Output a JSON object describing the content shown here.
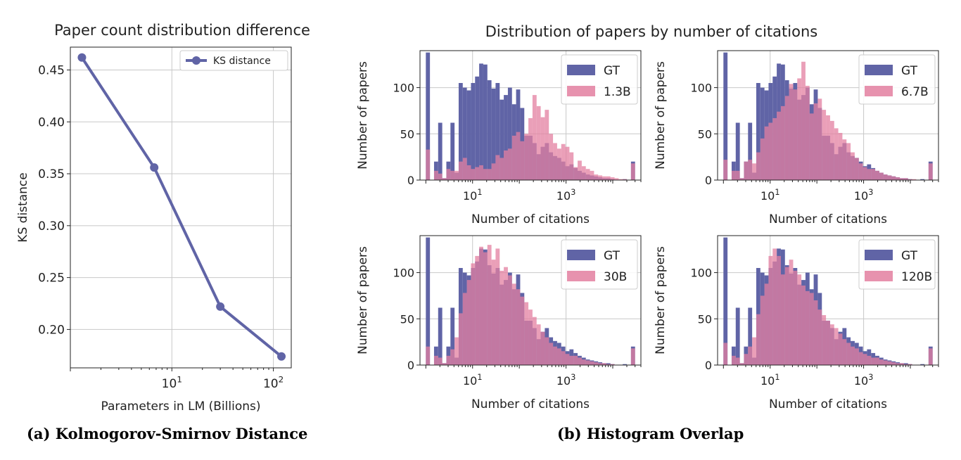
{
  "captions": {
    "a": "(a) Kolmogorov-Smirnov Distance",
    "b": "(b) Histogram Overlap"
  },
  "colors": {
    "gt": "#6064a6",
    "model": "#e37fa0",
    "line": "#6064a6"
  },
  "chart_data": [
    {
      "type": "line",
      "title": "Paper count distribution difference",
      "xlabel": "Parameters in LM (Billions)",
      "ylabel": "KS distance",
      "xscale": "log",
      "xlim": [
        1.0,
        150
      ],
      "ylim": [
        0.163,
        0.472
      ],
      "xticks": [
        {
          "value": 10,
          "base": "10",
          "exp": "1"
        },
        {
          "value": 100,
          "base": "10",
          "exp": "2"
        }
      ],
      "yticks": [
        "0.20",
        "0.25",
        "0.30",
        "0.35",
        "0.40",
        "0.45"
      ],
      "grid": true,
      "legend_position": "upper right",
      "series": [
        {
          "name": "KS distance",
          "x": [
            1.3,
            6.7,
            30,
            120
          ],
          "y": [
            0.462,
            0.356,
            0.222,
            0.174
          ]
        }
      ]
    },
    {
      "type": "histogram",
      "title": "Distribution of papers by number of citations",
      "xlabel": "Number of citations",
      "ylabel": "Number of papers",
      "xscale": "log",
      "ylim": [
        0,
        140
      ],
      "yticks": [
        "0",
        "50",
        "100"
      ],
      "xticks": [
        {
          "value": 10,
          "base": "10",
          "exp": "1"
        },
        {
          "value": 1000,
          "base": "10",
          "exp": "3"
        }
      ],
      "grid": true,
      "legend_position": "upper right",
      "panels": [
        {
          "series": [
            {
              "name": "GT",
              "values": [
                138,
                0,
                20,
                62,
                2,
                20,
                62,
                8,
                105,
                100,
                97,
                105,
                112,
                126,
                125,
                108,
                99,
                105,
                87,
                92,
                100,
                82,
                98,
                78,
                48,
                48,
                40,
                28,
                36,
                40,
                30,
                26,
                24,
                20,
                15,
                17,
                13,
                10,
                8,
                6,
                5,
                4,
                3,
                2,
                2,
                1,
                0,
                0,
                1,
                0,
                20
              ]
            },
            {
              "name": "1.3B",
              "values": [
                33,
                0,
                10,
                7,
                2,
                12,
                10,
                10,
                20,
                24,
                16,
                12,
                14,
                16,
                12,
                12,
                18,
                27,
                24,
                32,
                34,
                48,
                52,
                42,
                50,
                67,
                92,
                80,
                68,
                76,
                50,
                40,
                34,
                39,
                36,
                30,
                14,
                21,
                15,
                12,
                10,
                6,
                5,
                4,
                4,
                3,
                2,
                1,
                1,
                0,
                18
              ]
            }
          ]
        },
        {
          "series": [
            {
              "name": "GT",
              "values": [
                138,
                0,
                20,
                62,
                2,
                20,
                62,
                8,
                105,
                100,
                97,
                105,
                112,
                126,
                125,
                108,
                99,
                105,
                87,
                92,
                100,
                82,
                98,
                78,
                48,
                48,
                40,
                28,
                36,
                40,
                30,
                26,
                24,
                20,
                15,
                17,
                13,
                10,
                8,
                6,
                5,
                4,
                3,
                2,
                2,
                1,
                0,
                0,
                1,
                0,
                20
              ]
            },
            {
              "name": "6.7B",
              "values": [
                22,
                0,
                10,
                10,
                2,
                20,
                22,
                18,
                30,
                45,
                58,
                62,
                67,
                74,
                80,
                91,
                104,
                98,
                110,
                128,
                102,
                72,
                83,
                88,
                76,
                70,
                64,
                56,
                51,
                44,
                40,
                30,
                24,
                18,
                14,
                12,
                12,
                10,
                8,
                6,
                5,
                4,
                3,
                2,
                2,
                1,
                1,
                0,
                0,
                0,
                18
              ]
            }
          ]
        },
        {
          "series": [
            {
              "name": "GT",
              "values": [
                138,
                0,
                20,
                62,
                2,
                20,
                62,
                8,
                105,
                100,
                97,
                105,
                112,
                126,
                125,
                108,
                99,
                105,
                87,
                92,
                100,
                82,
                98,
                78,
                48,
                48,
                40,
                28,
                36,
                40,
                30,
                26,
                24,
                20,
                15,
                17,
                13,
                10,
                8,
                6,
                5,
                4,
                3,
                2,
                2,
                1,
                0,
                0,
                1,
                0,
                20
              ]
            },
            {
              "name": "30B",
              "values": [
                20,
                0,
                10,
                8,
                2,
                10,
                17,
                30,
                56,
                78,
                92,
                110,
                118,
                128,
                122,
                130,
                114,
                126,
                102,
                106,
                97,
                88,
                82,
                74,
                68,
                60,
                52,
                44,
                36,
                30,
                24,
                20,
                18,
                15,
                12,
                10,
                10,
                8,
                6,
                5,
                4,
                3,
                2,
                2,
                1,
                1,
                0,
                0,
                0,
                0,
                18
              ]
            }
          ]
        },
        {
          "series": [
            {
              "name": "GT",
              "values": [
                138,
                0,
                20,
                62,
                2,
                20,
                62,
                8,
                105,
                100,
                97,
                105,
                112,
                126,
                125,
                108,
                99,
                105,
                87,
                92,
                100,
                82,
                98,
                78,
                48,
                48,
                40,
                28,
                36,
                40,
                30,
                26,
                24,
                20,
                15,
                17,
                13,
                10,
                8,
                6,
                5,
                4,
                3,
                2,
                2,
                1,
                0,
                0,
                1,
                0,
                20
              ]
            },
            {
              "name": "120B",
              "values": [
                24,
                0,
                10,
                8,
                2,
                12,
                20,
                30,
                55,
                75,
                88,
                118,
                126,
                118,
                98,
                106,
                114,
                102,
                98,
                86,
                80,
                78,
                70,
                60,
                54,
                48,
                44,
                40,
                34,
                28,
                24,
                20,
                18,
                14,
                12,
                10,
                8,
                8,
                6,
                5,
                4,
                3,
                2,
                2,
                1,
                1,
                0,
                0,
                0,
                0,
                18
              ]
            }
          ]
        }
      ]
    }
  ]
}
